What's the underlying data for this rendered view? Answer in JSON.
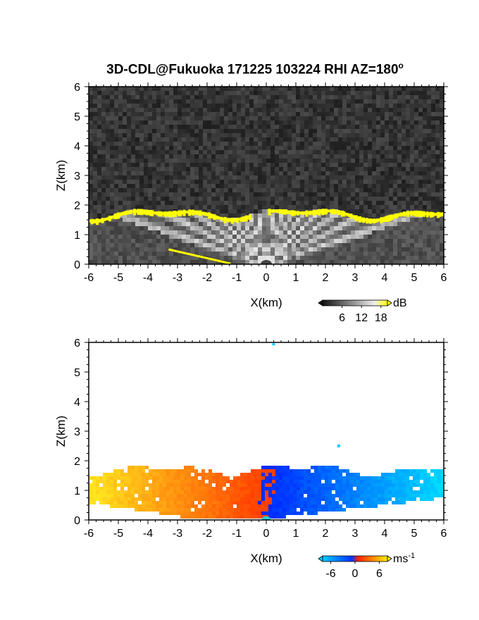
{
  "title": {
    "main": "3D-CDL@Fukuoka 171225 103224 RHI AZ=180",
    "degree": "o"
  },
  "chart_data": [
    {
      "type": "heatmap",
      "quantity": "backscatter",
      "xlabel": "X(km)",
      "ylabel": "Z(km)",
      "xlim": [
        -6,
        6
      ],
      "ylim": [
        0,
        6
      ],
      "xticks": [
        "-6",
        "-5",
        "-4",
        "-3",
        "-2",
        "-1",
        "0",
        "1",
        "2",
        "3",
        "4",
        "5",
        "6"
      ],
      "yticks": [
        "0",
        "1",
        "2",
        "3",
        "4",
        "5",
        "6"
      ],
      "colorbar": {
        "unit": "dB",
        "ticks": [
          "6",
          "12",
          "18"
        ],
        "range": [
          0,
          20
        ]
      },
      "cloud_top_km": 1.75,
      "colors": {
        "noise": "#333333",
        "high": "#ffff00",
        "beam": "#e8e8e8"
      }
    },
    {
      "type": "heatmap",
      "quantity": "doppler_velocity",
      "xlabel": "X(km)",
      "ylabel": "Z(km)",
      "xlim": [
        -6,
        6
      ],
      "ylim": [
        0,
        6
      ],
      "xticks": [
        "-6",
        "-5",
        "-4",
        "-3",
        "-2",
        "-1",
        "0",
        "1",
        "2",
        "3",
        "4",
        "5",
        "6"
      ],
      "yticks": [
        "0",
        "1",
        "2",
        "3",
        "4",
        "5",
        "6"
      ],
      "colorbar": {
        "unit": "ms",
        "unit_exp": "-1",
        "ticks": [
          "-6",
          "0",
          "6"
        ],
        "range": [
          -8,
          8
        ]
      },
      "colors": {
        "neg": "#0033ff",
        "zero": "#ff3300",
        "pos": "#ffcc00",
        "neg_far": "#00ccff"
      }
    }
  ]
}
